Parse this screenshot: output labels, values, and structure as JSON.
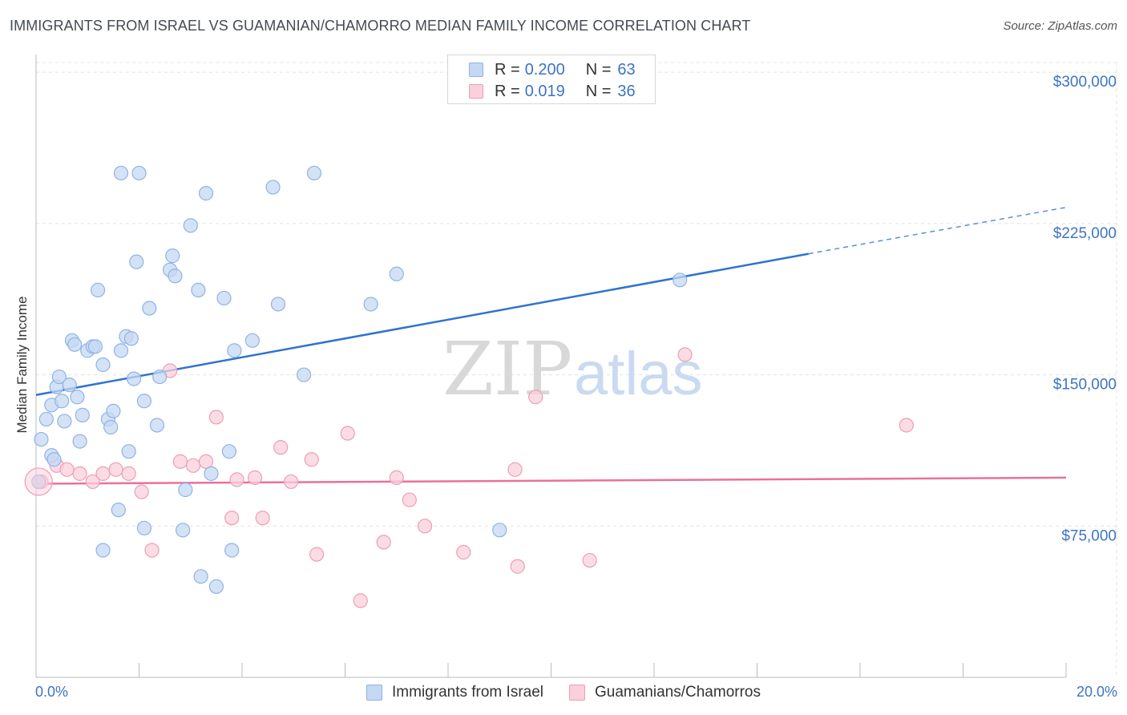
{
  "title": "IMMIGRANTS FROM ISRAEL VS GUAMANIAN/CHAMORRO MEDIAN FAMILY INCOME CORRELATION CHART",
  "source": "Source: ZipAtlas.com",
  "watermark": {
    "zip": "ZIP",
    "atlas": "atlas"
  },
  "legend": {
    "rows": [
      {
        "r_label": "R =",
        "r_value": "0.200",
        "n_label": "N =",
        "n_value": "63"
      },
      {
        "r_label": "R =",
        "r_value": "0.019",
        "n_label": "N =",
        "n_value": "36"
      }
    ]
  },
  "colors": {
    "blue_fill": "#c5d8f3",
    "blue_stroke": "#8fb3e6",
    "blue_line": "#2f73d0",
    "pink_fill": "#f9d0dc",
    "pink_stroke": "#ee9db6",
    "pink_line": "#e9719b",
    "tick_text": "#3d74c4",
    "grid": "#e3e3e3"
  },
  "chart_data": {
    "type": "scatter",
    "title": "IMMIGRANTS FROM ISRAEL VS GUAMANIAN/CHAMORRO MEDIAN FAMILY INCOME CORRELATION CHART",
    "xlabel": "",
    "ylabel": "Median Family Income",
    "xlim": [
      0,
      20
    ],
    "ylim": [
      0,
      308000
    ],
    "x_tick_labels": [
      "0.0%",
      "20.0%"
    ],
    "y_ticks": [
      75000,
      150000,
      225000,
      300000
    ],
    "y_tick_labels": [
      "$75,000",
      "$150,000",
      "$225,000",
      "$300,000"
    ],
    "grid": true,
    "series": [
      {
        "name": "Immigrants from Israel",
        "color": "#8fb3e6",
        "trend": {
          "x": [
            0,
            15
          ],
          "y": [
            140000,
            210000
          ],
          "dashed_x": [
            15,
            20
          ],
          "dashed_y": [
            210000,
            233000
          ]
        },
        "points": [
          [
            0.1,
            118000
          ],
          [
            0.2,
            128000
          ],
          [
            0.3,
            110000
          ],
          [
            0.3,
            135000
          ],
          [
            0.35,
            108000
          ],
          [
            0.4,
            144000
          ],
          [
            0.45,
            149000
          ],
          [
            0.5,
            137000
          ],
          [
            0.55,
            127000
          ],
          [
            0.65,
            145000
          ],
          [
            0.7,
            167000
          ],
          [
            0.75,
            165000
          ],
          [
            0.8,
            139000
          ],
          [
            0.85,
            117000
          ],
          [
            0.9,
            130000
          ],
          [
            1.0,
            162000
          ],
          [
            1.1,
            164000
          ],
          [
            1.15,
            164000
          ],
          [
            1.2,
            192000
          ],
          [
            1.3,
            155000
          ],
          [
            1.4,
            128000
          ],
          [
            1.45,
            124000
          ],
          [
            1.5,
            132000
          ],
          [
            1.6,
            83000
          ],
          [
            1.65,
            162000
          ],
          [
            1.75,
            169000
          ],
          [
            1.8,
            112000
          ],
          [
            1.85,
            168000
          ],
          [
            1.9,
            148000
          ],
          [
            1.95,
            206000
          ],
          [
            2.1,
            137000
          ],
          [
            2.2,
            183000
          ],
          [
            2.35,
            125000
          ],
          [
            2.4,
            149000
          ],
          [
            2.6,
            202000
          ],
          [
            2.65,
            209000
          ],
          [
            2.7,
            199000
          ],
          [
            2.85,
            73000
          ],
          [
            2.9,
            93000
          ],
          [
            3.0,
            224000
          ],
          [
            3.15,
            192000
          ],
          [
            3.2,
            50000
          ],
          [
            3.3,
            240000
          ],
          [
            3.4,
            101000
          ],
          [
            3.5,
            45000
          ],
          [
            3.65,
            188000
          ],
          [
            3.75,
            112000
          ],
          [
            3.85,
            162000
          ],
          [
            4.2,
            167000
          ],
          [
            4.6,
            243000
          ],
          [
            4.7,
            185000
          ],
          [
            5.2,
            150000
          ],
          [
            5.4,
            250000
          ],
          [
            6.5,
            185000
          ],
          [
            7.0,
            200000
          ],
          [
            9.0,
            73000
          ],
          [
            12.5,
            197000
          ],
          [
            1.3,
            63000
          ],
          [
            2.1,
            74000
          ],
          [
            3.8,
            63000
          ],
          [
            1.65,
            250000
          ],
          [
            2.0,
            250000
          ],
          [
            0.05,
            97000
          ]
        ]
      },
      {
        "name": "Guamanians/Chamorros",
        "color": "#ee9db6",
        "trend": {
          "x": [
            0,
            20
          ],
          "y": [
            96000,
            99000
          ]
        },
        "points": [
          [
            0.1,
            97000
          ],
          [
            0.4,
            105000
          ],
          [
            0.6,
            103000
          ],
          [
            0.85,
            101000
          ],
          [
            1.1,
            97000
          ],
          [
            1.3,
            101000
          ],
          [
            1.55,
            103000
          ],
          [
            1.8,
            101000
          ],
          [
            2.05,
            92000
          ],
          [
            2.25,
            63000
          ],
          [
            2.6,
            152000
          ],
          [
            2.8,
            107000
          ],
          [
            3.05,
            105000
          ],
          [
            3.3,
            107000
          ],
          [
            3.5,
            129000
          ],
          [
            3.8,
            79000
          ],
          [
            3.9,
            98000
          ],
          [
            4.25,
            99000
          ],
          [
            4.4,
            79000
          ],
          [
            4.75,
            114000
          ],
          [
            4.95,
            97000
          ],
          [
            5.35,
            108000
          ],
          [
            5.45,
            61000
          ],
          [
            6.05,
            121000
          ],
          [
            6.3,
            38000
          ],
          [
            6.75,
            67000
          ],
          [
            7.0,
            99000
          ],
          [
            7.25,
            88000
          ],
          [
            7.55,
            75000
          ],
          [
            8.3,
            62000
          ],
          [
            9.3,
            103000
          ],
          [
            9.35,
            55000
          ],
          [
            9.7,
            139000
          ],
          [
            10.75,
            58000
          ],
          [
            12.6,
            160000
          ],
          [
            16.9,
            125000
          ]
        ]
      }
    ]
  },
  "bottom_legend": {
    "items": [
      "Immigrants from Israel",
      "Guamanians/Chamorros"
    ]
  }
}
